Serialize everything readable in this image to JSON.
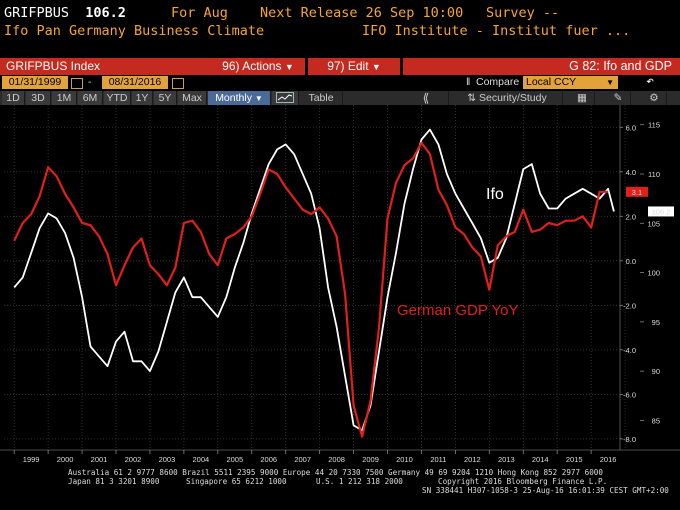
{
  "header": {
    "ticker": "GRIFPBUS",
    "last": "106.2",
    "for_label": "For Aug",
    "next_release": "Next Release 26 Sep 10:00",
    "survey": "Survey --",
    "description": "Ifo Pan Germany Business Climate",
    "source": "IFO Institute - Institut fuer ..."
  },
  "toolbar": {
    "index_label": "GRIFPBUS Index",
    "actions_label": "96) Actions",
    "edit_label": "97) Edit",
    "chart_title": "G 82: Ifo and GDP",
    "start_date": "01/31/1999",
    "date_sep": "-",
    "end_date": "08/31/2016",
    "compare_label": "Compare",
    "currency_label": "Local CCY",
    "ranges": [
      "1D",
      "3D",
      "1M",
      "6M",
      "YTD",
      "1Y",
      "5Y",
      "Max"
    ],
    "frequency": "Monthly",
    "table_label": "Table",
    "security_study": "Security/Study"
  },
  "colors": {
    "ifo": "#ffffff",
    "gdp": "#e0201b",
    "header_orange": "#f7a531",
    "toolbar_red": "#c42a1f",
    "date_box": "#e3a23a",
    "selected": "#4a6b99"
  },
  "icons": [
    "calendar-icon",
    "dropdown-arrow-icon",
    "line-chart-icon",
    "double-left-arrow-icon",
    "security-study-icon",
    "settings-icon",
    "edit-icon",
    "undo-icon"
  ],
  "chart_data": {
    "type": "line",
    "annotations": {
      "ifo_label": "Ifo",
      "gdp_label": "German GDP YoY"
    },
    "x_tick_labels": [
      "1999",
      "2000",
      "2001",
      "2002",
      "2003",
      "2004",
      "2005",
      "2006",
      "2007",
      "2008",
      "2009",
      "2010",
      "2011",
      "2012",
      "2013",
      "2014",
      "2015",
      "2016"
    ],
    "y_left_ticks": [
      "6.0",
      "4.0",
      "2.0",
      "0.0",
      "-2.0",
      "-4.0",
      "-6.0",
      "-8.0"
    ],
    "y_right_ticks": [
      "115",
      "110",
      "105",
      "100",
      "95",
      "90",
      "85"
    ],
    "last_value_tags": {
      "gdp": "3.1",
      "ifo": "106.2"
    },
    "ylim_gdp": [
      -8.5,
      7.0
    ],
    "ylim_ifo": [
      82,
      117
    ],
    "series": [
      {
        "name": "Ifo",
        "axis": "right",
        "x": [
          1999.0,
          1999.25,
          1999.5,
          1999.75,
          2000.0,
          2000.25,
          2000.5,
          2000.75,
          2001.0,
          2001.25,
          2001.5,
          2001.75,
          2002.0,
          2002.25,
          2002.5,
          2002.75,
          2003.0,
          2003.25,
          2003.5,
          2003.75,
          2004.0,
          2004.25,
          2004.5,
          2004.75,
          2005.0,
          2005.25,
          2005.5,
          2005.75,
          2006.0,
          2006.25,
          2006.5,
          2006.75,
          2007.0,
          2007.25,
          2007.5,
          2007.75,
          2008.0,
          2008.25,
          2008.5,
          2008.75,
          2009.0,
          2009.25,
          2009.5,
          2009.75,
          2010.0,
          2010.25,
          2010.5,
          2010.75,
          2011.0,
          2011.25,
          2011.5,
          2011.75,
          2012.0,
          2012.25,
          2012.5,
          2012.75,
          2013.0,
          2013.25,
          2013.5,
          2013.75,
          2014.0,
          2014.25,
          2014.5,
          2014.75,
          2015.0,
          2015.25,
          2015.5,
          2015.75,
          2016.0,
          2016.25,
          2016.5,
          2016.67
        ],
        "values": [
          98.5,
          99.5,
          102.0,
          104.5,
          106.0,
          105.5,
          104.0,
          101.5,
          97.5,
          92.5,
          91.5,
          90.5,
          93.0,
          94.0,
          91.0,
          91.0,
          90.0,
          92.0,
          95.0,
          98.0,
          99.5,
          97.5,
          97.5,
          96.5,
          95.5,
          97.5,
          100.5,
          103.0,
          106.0,
          108.5,
          111.0,
          112.5,
          113.0,
          112.0,
          110.0,
          108.0,
          104.5,
          98.5,
          94.5,
          89.5,
          84.5,
          84.0,
          86.5,
          92.0,
          97.5,
          102.0,
          107.0,
          110.5,
          113.5,
          114.5,
          113.0,
          110.0,
          108.0,
          106.5,
          105.0,
          103.5,
          101.0,
          101.5,
          103.5,
          107.0,
          110.5,
          111.0,
          108.0,
          106.5,
          106.5,
          107.5,
          108.0,
          108.5,
          108.0,
          107.5,
          108.5,
          106.2
        ]
      },
      {
        "name": "German GDP YoY",
        "axis": "left",
        "x": [
          1999.0,
          1999.25,
          1999.5,
          1999.75,
          2000.0,
          2000.25,
          2000.5,
          2000.75,
          2001.0,
          2001.25,
          2001.5,
          2001.75,
          2002.0,
          2002.25,
          2002.5,
          2002.75,
          2003.0,
          2003.25,
          2003.5,
          2003.75,
          2004.0,
          2004.25,
          2004.5,
          2004.75,
          2005.0,
          2005.25,
          2005.5,
          2005.75,
          2006.0,
          2006.25,
          2006.5,
          2006.75,
          2007.0,
          2007.25,
          2007.5,
          2007.75,
          2008.0,
          2008.25,
          2008.5,
          2008.75,
          2009.0,
          2009.25,
          2009.5,
          2009.75,
          2010.0,
          2010.25,
          2010.5,
          2010.75,
          2011.0,
          2011.25,
          2011.5,
          2011.75,
          2012.0,
          2012.25,
          2012.5,
          2012.75,
          2013.0,
          2013.25,
          2013.5,
          2013.75,
          2014.0,
          2014.25,
          2014.5,
          2014.75,
          2015.0,
          2015.25,
          2015.5,
          2015.75,
          2016.0,
          2016.25,
          2016.5
        ],
        "values": [
          0.9,
          1.7,
          2.1,
          2.9,
          4.2,
          3.8,
          3.0,
          2.4,
          1.7,
          1.6,
          1.1,
          0.3,
          -1.1,
          -0.2,
          0.6,
          1.0,
          -0.2,
          -0.6,
          -1.1,
          -0.3,
          1.7,
          1.8,
          1.3,
          0.3,
          -0.2,
          1.0,
          1.2,
          1.5,
          2.0,
          3.0,
          4.1,
          3.9,
          3.3,
          2.8,
          2.3,
          2.1,
          2.4,
          1.9,
          1.1,
          -1.5,
          -6.5,
          -7.9,
          -6.3,
          -3.0,
          1.9,
          3.5,
          4.3,
          4.6,
          5.3,
          4.8,
          3.2,
          2.5,
          1.5,
          1.2,
          0.6,
          0.2,
          -1.3,
          0.7,
          1.1,
          1.3,
          2.3,
          1.3,
          1.4,
          1.7,
          1.6,
          1.8,
          1.8,
          2.0,
          1.5,
          3.1,
          3.1
        ]
      }
    ]
  },
  "footer": {
    "line1": "Australia 61 2 9777 8600 Brazil 5511 2395 9000 Europe 44 20 7330 7500 Germany 49 69 9204 1210 Hong Kong 852 2977 6000",
    "line2a": "Japan 81 3 3201 8900",
    "line2b": "Singapore 65 6212 1000",
    "line2c": "U.S. 1 212 318 2000",
    "line2d": "Copyright 2016 Bloomberg Finance L.P.",
    "line3": "SN 338441 H307-1058-3 25-Aug-16 16:01:39 CEST GMT+2:00"
  }
}
